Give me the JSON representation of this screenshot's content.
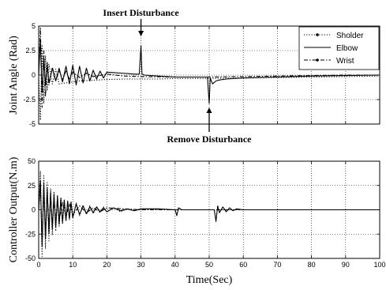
{
  "chart_data": [
    {
      "type": "line",
      "ylabel": "Joint Angle (Rad)",
      "xlim": [
        0,
        100
      ],
      "ylim": [
        -5,
        5
      ],
      "yticks": [
        -5,
        -2.5,
        0,
        2.5,
        5
      ],
      "ytick_labels": [
        "-5",
        "-2.5",
        "0",
        "2.5",
        "5"
      ],
      "grid": true,
      "legend_position": "top-right",
      "series": [
        {
          "name": "Sholder",
          "style": "dotted",
          "x": [
            0,
            0.5,
            1,
            1.5,
            2,
            2.5,
            3,
            4,
            5,
            6,
            8,
            10,
            12,
            15,
            20,
            25,
            30,
            35,
            40,
            50,
            60,
            70,
            80,
            90,
            100
          ],
          "y": [
            0,
            -4.6,
            3.1,
            -2.9,
            2.0,
            -1.6,
            1.1,
            -0.9,
            0.6,
            -0.9,
            -0.8,
            -0.7,
            -0.6,
            -0.55,
            -0.45,
            -0.4,
            -0.4,
            -0.4,
            -0.35,
            -0.35,
            -0.3,
            -0.25,
            -0.2,
            -0.15,
            -0.1
          ]
        },
        {
          "name": "Elbow",
          "style": "solid",
          "x": [
            0,
            0.5,
            1,
            1.5,
            2,
            2.5,
            3,
            4,
            5,
            6,
            7,
            8,
            9,
            10,
            11,
            12,
            13,
            14,
            15,
            16,
            17,
            18,
            19,
            20,
            22,
            24,
            26,
            28,
            29.5,
            30,
            30.3,
            31,
            35,
            40,
            45,
            49.5,
            50,
            50.3,
            51,
            52,
            53,
            55,
            60,
            70,
            80,
            90,
            100
          ],
          "y": [
            0,
            3.6,
            -1.8,
            1.7,
            -1.0,
            1.0,
            -0.8,
            0.7,
            -0.6,
            0.7,
            -0.7,
            0.9,
            -0.9,
            1.0,
            -1.0,
            0.9,
            -0.8,
            0.7,
            -0.6,
            0.5,
            -0.4,
            0.4,
            -0.3,
            0.3,
            0.25,
            0.2,
            0.15,
            0.1,
            0.1,
            3.0,
            0.1,
            0.0,
            -0.1,
            -0.2,
            -0.2,
            -0.2,
            -2.9,
            -0.3,
            -0.9,
            -0.6,
            -0.5,
            -0.4,
            -0.3,
            -0.2,
            -0.1,
            -0.05,
            0.0
          ]
        },
        {
          "name": "Wrist",
          "style": "dashdot",
          "x": [
            0,
            0.5,
            1,
            1.5,
            2,
            2.5,
            3,
            4,
            5,
            6,
            7,
            8,
            9,
            10,
            12,
            14,
            16,
            20,
            25,
            30,
            40,
            50,
            60,
            70,
            80,
            90,
            100
          ],
          "y": [
            0,
            4.8,
            -3.3,
            2.5,
            -2.2,
            1.4,
            -1.0,
            0.8,
            -0.6,
            0.5,
            -0.5,
            0.4,
            -0.4,
            0.3,
            -0.25,
            0.2,
            -0.15,
            0.1,
            -0.1,
            -0.15,
            -0.2,
            -0.2,
            -0.15,
            -0.1,
            -0.05,
            0.0,
            0.0
          ]
        }
      ],
      "annotations": [
        {
          "text": "Insert Disturbance",
          "x": 30,
          "y": 3.0,
          "label_position": "above"
        },
        {
          "text": "Remove Disturbance",
          "x": 50,
          "y": -2.9,
          "label_position": "below"
        }
      ]
    },
    {
      "type": "line",
      "xlabel": "Time(Sec)",
      "ylabel": "Controller Output(N.m)",
      "xlim": [
        0,
        100
      ],
      "ylim": [
        -50,
        50
      ],
      "xticks": [
        0,
        10,
        20,
        30,
        40,
        50,
        60,
        70,
        80,
        90,
        100
      ],
      "xtick_labels": [
        "0",
        "10",
        "20",
        "30",
        "40",
        "50",
        "60",
        "70",
        "80",
        "90",
        "100"
      ],
      "yticks": [
        -50,
        -25,
        0,
        25,
        50
      ],
      "ytick_labels": [
        "-50",
        "-25",
        "0",
        "25",
        "50"
      ],
      "grid": true,
      "series": [
        {
          "style": "dotted",
          "x": [
            0,
            0.5,
            1,
            1.5,
            2,
            2.5,
            3,
            3.5,
            4,
            4.5,
            5,
            5.5,
            6,
            6.5,
            7,
            7.5,
            8,
            8.5,
            9,
            9.5,
            10,
            11,
            12,
            13,
            14,
            15,
            16,
            17,
            18,
            19,
            20,
            22,
            24,
            26,
            28,
            30,
            35,
            40,
            45,
            50,
            60,
            70,
            80,
            90,
            100
          ],
          "y": [
            0,
            40,
            -48,
            35,
            -40,
            28,
            -32,
            22,
            -26,
            18,
            -22,
            15,
            -18,
            12,
            -15,
            10,
            -12,
            9,
            -10,
            8,
            -9,
            7,
            -6,
            5,
            -5,
            4,
            -4,
            3,
            -3,
            3,
            -2,
            2,
            -2,
            1,
            -1,
            1,
            1,
            0,
            0,
            0,
            0,
            0,
            0,
            0,
            0
          ]
        },
        {
          "style": "solid",
          "x": [
            0,
            0.5,
            1,
            1.5,
            2,
            2.5,
            3,
            3.5,
            4,
            4.5,
            5,
            5.5,
            6,
            6.5,
            7,
            7.5,
            8,
            8.5,
            9,
            9.5,
            10,
            11,
            12,
            13,
            14,
            15,
            16,
            17,
            18,
            19,
            20,
            22,
            24,
            26,
            28,
            30,
            35,
            40,
            40.5,
            41,
            42,
            45,
            50,
            51.5,
            52,
            52.5,
            53,
            54,
            55,
            56,
            57,
            58,
            60,
            70,
            80,
            90,
            100
          ],
          "y": [
            0,
            30,
            -38,
            28,
            -30,
            22,
            -24,
            18,
            -20,
            16,
            -18,
            14,
            -15,
            12,
            -13,
            10,
            -11,
            9,
            -9,
            8,
            -8,
            6,
            -5,
            4,
            -4,
            3,
            -3,
            3,
            -2,
            2,
            -2,
            2,
            -1,
            1,
            -1,
            1,
            1,
            0,
            -6,
            2,
            0,
            0,
            0,
            0,
            -12,
            4,
            -3,
            3,
            -2,
            2,
            -1,
            1,
            0,
            0,
            0,
            0,
            0
          ]
        },
        {
          "style": "dashdot",
          "x": [
            0,
            0.5,
            1,
            1.5,
            2,
            2.5,
            3,
            3.5,
            4,
            4.5,
            5,
            5.5,
            6,
            7,
            8,
            9,
            10,
            12,
            14,
            16,
            18,
            20,
            25,
            30,
            40,
            50,
            60,
            70,
            80,
            90,
            100
          ],
          "y": [
            0,
            25,
            -30,
            22,
            -25,
            18,
            -20,
            14,
            -16,
            12,
            -13,
            10,
            -11,
            8,
            -7,
            6,
            -5,
            4,
            -3,
            2,
            -2,
            2,
            1,
            0,
            0,
            0,
            0,
            0,
            0,
            0,
            0
          ]
        }
      ]
    }
  ]
}
